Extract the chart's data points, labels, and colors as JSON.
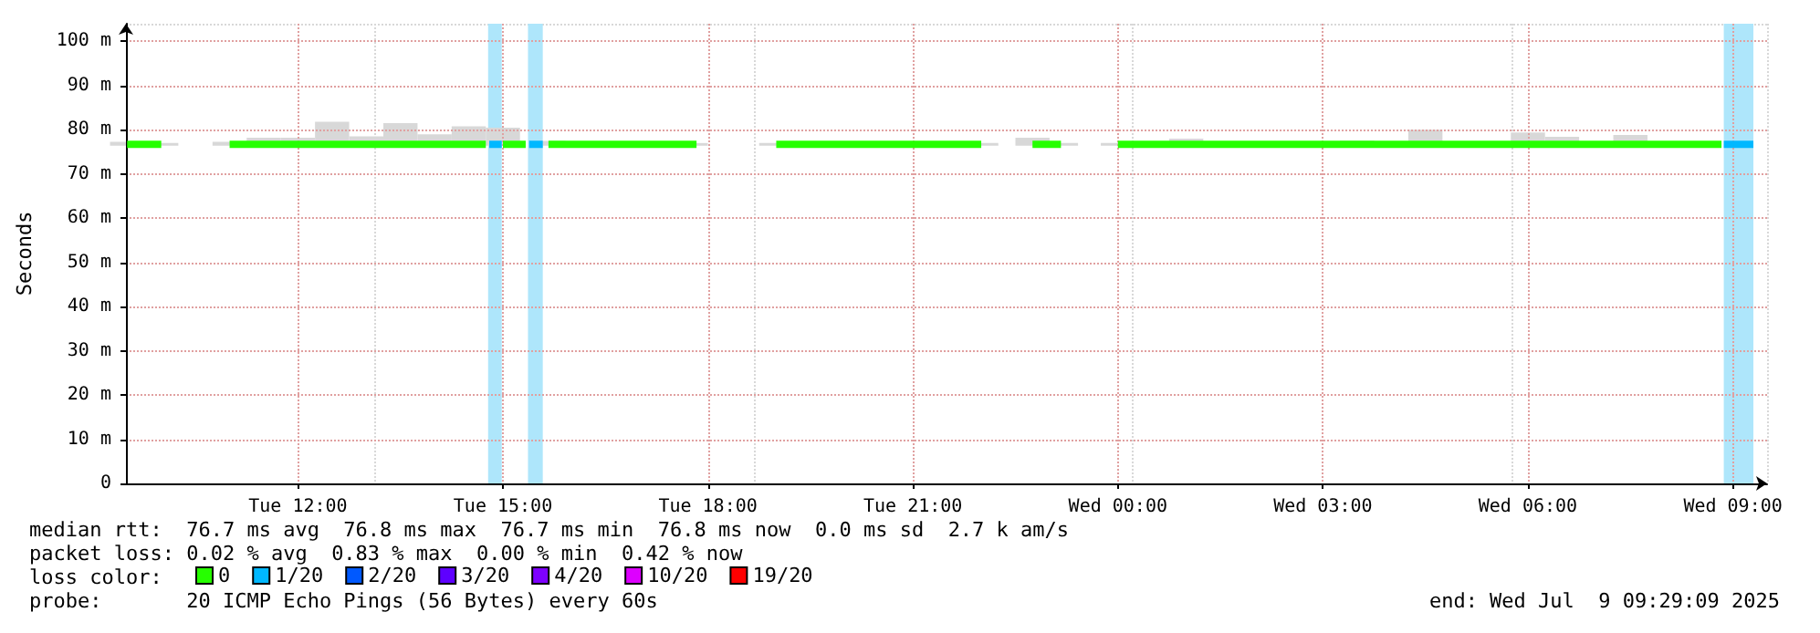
{
  "chart_data": {
    "type": "line",
    "ylabel": "Seconds",
    "legend_title": "loss color:",
    "legend": "bottom left",
    "grid": true,
    "marker": "none",
    "line_style": "solid",
    "xlim": [
      "2025-07-08T09:29",
      "2025-07-09T09:30"
    ],
    "xticks": [
      {
        "value": "2025-07-08T12:00",
        "label": "Tue 12:00"
      },
      {
        "value": "2025-07-08T15:00",
        "label": "Tue 15:00"
      },
      {
        "value": "2025-07-08T18:00",
        "label": "Tue 18:00"
      },
      {
        "value": "2025-07-08T21:00",
        "label": "Tue 21:00"
      },
      {
        "value": "2025-07-09T00:00",
        "label": "Wed 00:00"
      },
      {
        "value": "2025-07-09T03:00",
        "label": "Wed 03:00"
      },
      {
        "value": "2025-07-09T06:00",
        "label": "Wed 06:00"
      },
      {
        "value": "2025-07-09T09:00",
        "label": "Wed 09:00"
      }
    ],
    "ylim": [
      0,
      104
    ],
    "yticks": [
      0,
      {
        "value": 10,
        "label": "10 m"
      },
      {
        "value": 20,
        "label": "20 m"
      },
      {
        "value": 30,
        "label": "30 m"
      },
      {
        "value": 40,
        "label": "40 m"
      },
      {
        "value": 50,
        "label": "50 m"
      },
      {
        "value": 60,
        "label": "60 m"
      },
      {
        "value": 70,
        "label": "70 m"
      },
      {
        "value": 80,
        "label": "80 m"
      },
      {
        "value": 90,
        "label": "90 m"
      },
      {
        "value": 100,
        "label": "100 m"
      }
    ],
    "series": [
      {
        "name": "0",
        "color": "#26ff00",
        "x": [
          "2025-07-08T09:30",
          "2025-07-08T10:00",
          "2025-07-08T10:30",
          "2025-07-08T11:00",
          "2025-07-08T11:30",
          "2025-07-08T12:00",
          "2025-07-08T12:30",
          "2025-07-08T13:00",
          "2025-07-08T13:30",
          "2025-07-08T14:00",
          "2025-07-08T14:30",
          "2025-07-08T14:45",
          "2025-07-08T14:50",
          "2025-07-08T15:00",
          "2025-07-08T15:20",
          "2025-07-08T15:25",
          "2025-07-08T15:40",
          "2025-07-08T16:00",
          "2025-07-08T16:30",
          "2025-07-08T17:00",
          "2025-07-08T17:30",
          "2025-07-08T17:50",
          "2025-07-08T18:00",
          "2025-07-08T19:00",
          "2025-07-08T19:30",
          "2025-07-08T20:00",
          "2025-07-08T20:30",
          "2025-07-08T21:00",
          "2025-07-08T21:30",
          "2025-07-08T22:00",
          "2025-07-08T22:15",
          "2025-07-08T22:45",
          "2025-07-08T23:10",
          "2025-07-08T23:30",
          "2025-07-09T00:00",
          "2025-07-09T00:30",
          "2025-07-09T01:00",
          "2025-07-09T01:30",
          "2025-07-09T02:00",
          "2025-07-09T02:30",
          "2025-07-09T03:00",
          "2025-07-09T03:30",
          "2025-07-09T04:00",
          "2025-07-09T04:30",
          "2025-07-09T05:00",
          "2025-07-09T05:30",
          "2025-07-09T06:00",
          "2025-07-09T06:30",
          "2025-07-09T07:00",
          "2025-07-09T07:30",
          "2025-07-09T08:00",
          "2025-07-09T08:30",
          "2025-07-09T08:50"
        ],
        "values": [
          76.7,
          76.7,
          null,
          76.7,
          76.7,
          76.7,
          76.7,
          76.7,
          76.7,
          76.7,
          76.7,
          76.7,
          null,
          76.7,
          76.7,
          null,
          76.7,
          76.7,
          76.7,
          76.7,
          76.7,
          76.7,
          null,
          76.7,
          76.7,
          76.7,
          76.7,
          76.7,
          76.7,
          76.7,
          null,
          76.7,
          76.7,
          null,
          76.7,
          76.7,
          76.7,
          76.7,
          76.7,
          76.7,
          76.7,
          76.7,
          76.7,
          76.7,
          76.7,
          76.7,
          76.7,
          76.7,
          76.7,
          76.7,
          76.7,
          76.7,
          76.7
        ],
        "lower": [
          76.4,
          76.4,
          null,
          76.4,
          76.4,
          76.4,
          76.4,
          76.4,
          76.4,
          76.4,
          76.4,
          null,
          null,
          76.4,
          null,
          null,
          76.4,
          76.4,
          76.4,
          76.4,
          76.4,
          76.4,
          null,
          76.4,
          76.4,
          76.4,
          76.4,
          76.4,
          76.4,
          76.4,
          null,
          76.4,
          76.4,
          null,
          76.4,
          76.4,
          76.4,
          76.4,
          76.4,
          76.4,
          76.4,
          76.4,
          76.4,
          76.4,
          76.4,
          76.4,
          76.4,
          76.4,
          76.4,
          76.4,
          76.4,
          76.4,
          76.4
        ],
        "upper": [
          77.3,
          77.0,
          null,
          77.3,
          78.2,
          78.2,
          81.8,
          78.5,
          81.5,
          79.0,
          80.8,
          null,
          null,
          80.5,
          null,
          null,
          77.5,
          77.3,
          77.3,
          77.2,
          77.2,
          77.0,
          null,
          77.0,
          77.4,
          77.0,
          77.0,
          77.0,
          77.0,
          77.0,
          null,
          78.2,
          77.0,
          null,
          77.0,
          77.2,
          78.0,
          77.4,
          77.2,
          77.0,
          77.2,
          77.6,
          77.2,
          80.0,
          77.2,
          77.0,
          79.4,
          78.4,
          77.2,
          78.8,
          77.3,
          77.2,
          77.0
        ]
      },
      {
        "name": "1/20",
        "color": "#00b8ff",
        "x": [
          "2025-07-08T14:48",
          "2025-07-08T14:59",
          "2025-07-08T15:10",
          "2025-07-08T15:23",
          "2025-07-08T15:35",
          "2025-07-09T00:00",
          "2025-07-09T08:52",
          "2025-07-09T09:18"
        ],
        "values": [
          76.7,
          76.7,
          null,
          76.7,
          76.7,
          null,
          76.7,
          76.7
        ]
      },
      {
        "name": "2/20",
        "color": "#0059ff"
      },
      {
        "name": "3/20",
        "color": "#5e00ff"
      },
      {
        "name": "4/20",
        "color": "#7e00ff"
      },
      {
        "name": "10/20",
        "color": "#dd00ff"
      },
      {
        "name": "19/20",
        "color": "#ff0000"
      }
    ],
    "bands": [
      {
        "axis": "x",
        "from": "2025-07-08T14:47",
        "to": "2025-07-08T14:59",
        "color": "#aee6fb"
      },
      {
        "axis": "x",
        "from": "2025-07-08T15:22",
        "to": "2025-07-08T15:35",
        "color": "#aee6fb"
      },
      {
        "axis": "x",
        "from": "2025-07-09T08:52",
        "to": "2025-07-09T09:18",
        "color": "#aee6fb"
      }
    ],
    "annotations": [
      "median rtt:  76.7 ms avg  76.8 ms max  76.7 ms min  76.8 ms now  0.0 ms sd  2.7 k am/s",
      "packet loss: 0.02 % avg  0.83 % max  0.00 % min  0.42 % now",
      "probe:       20 ICMP Echo Pings (56 Bytes) every 60s",
      "end: Wed Jul  9 09:29:09 2025"
    ]
  }
}
